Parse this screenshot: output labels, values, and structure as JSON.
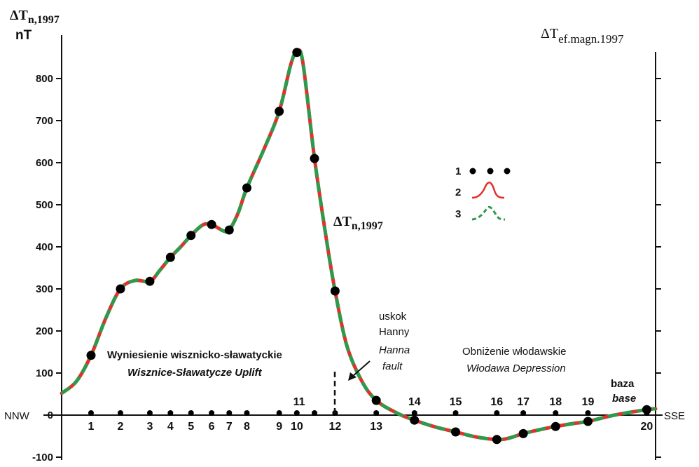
{
  "chart_data": {
    "type": "line",
    "left_axis_title_line1": "ΔT",
    "left_axis_title_sub": "n,1997",
    "left_axis_unit": "nT",
    "right_axis_title": "ΔT",
    "right_axis_title_sub": "ef.magn.1997",
    "curve_label": "ΔT",
    "curve_label_sub": "n,1997",
    "ylim": [
      -100,
      870
    ],
    "yticks": [
      -100,
      0,
      100,
      200,
      300,
      400,
      500,
      600,
      700,
      800
    ],
    "ytick_labels": [
      "-100",
      "0",
      "100",
      "200",
      "300",
      "400",
      "500",
      "600",
      "700",
      "800"
    ],
    "xlim": [
      0,
      20.2
    ],
    "left_end_label": "NNW",
    "right_end_label": "SSE",
    "stations": [
      {
        "label": "1",
        "x": 1,
        "y": 142
      },
      {
        "label": "2",
        "x": 2,
        "y": 300
      },
      {
        "label": "3",
        "x": 3,
        "y": 318
      },
      {
        "label": "4",
        "x": 3.7,
        "y": 375
      },
      {
        "label": "5",
        "x": 4.4,
        "y": 427
      },
      {
        "label": "6",
        "x": 5.1,
        "y": 453
      },
      {
        "label": "7",
        "x": 5.7,
        "y": 440
      },
      {
        "label": "8",
        "x": 6.3,
        "y": 540
      },
      {
        "label": "9",
        "x": 7.4,
        "y": 722
      },
      {
        "label": "10",
        "x": 8.0,
        "y": 862
      },
      {
        "label": "11",
        "x": 8.6,
        "y": 610
      },
      {
        "label": "12",
        "x": 9.3,
        "y": 295
      },
      {
        "label": "13",
        "x": 10.7,
        "y": 35
      },
      {
        "label": "14",
        "x": 12.0,
        "y": -12
      },
      {
        "label": "15",
        "x": 13.4,
        "y": -40
      },
      {
        "label": "16",
        "x": 14.8,
        "y": -58
      },
      {
        "label": "17",
        "x": 15.7,
        "y": -44
      },
      {
        "label": "18",
        "x": 16.8,
        "y": -27
      },
      {
        "label": "19",
        "x": 17.9,
        "y": -15
      },
      {
        "label": "20",
        "x": 19.9,
        "y": 13
      }
    ],
    "curve": [
      {
        "x": 0.0,
        "y": 52
      },
      {
        "x": 0.5,
        "y": 80
      },
      {
        "x": 1.0,
        "y": 142
      },
      {
        "x": 1.5,
        "y": 230
      },
      {
        "x": 2.0,
        "y": 300
      },
      {
        "x": 2.5,
        "y": 320
      },
      {
        "x": 3.0,
        "y": 318
      },
      {
        "x": 3.35,
        "y": 345
      },
      {
        "x": 3.7,
        "y": 375
      },
      {
        "x": 4.05,
        "y": 400
      },
      {
        "x": 4.4,
        "y": 427
      },
      {
        "x": 4.8,
        "y": 452
      },
      {
        "x": 5.1,
        "y": 453
      },
      {
        "x": 5.5,
        "y": 438
      },
      {
        "x": 5.7,
        "y": 440
      },
      {
        "x": 6.0,
        "y": 480
      },
      {
        "x": 6.3,
        "y": 540
      },
      {
        "x": 6.9,
        "y": 635
      },
      {
        "x": 7.4,
        "y": 722
      },
      {
        "x": 7.8,
        "y": 835
      },
      {
        "x": 8.0,
        "y": 862
      },
      {
        "x": 8.2,
        "y": 840
      },
      {
        "x": 8.6,
        "y": 610
      },
      {
        "x": 9.0,
        "y": 420
      },
      {
        "x": 9.3,
        "y": 295
      },
      {
        "x": 9.7,
        "y": 165
      },
      {
        "x": 10.2,
        "y": 82
      },
      {
        "x": 10.7,
        "y": 35
      },
      {
        "x": 11.4,
        "y": 5
      },
      {
        "x": 12.0,
        "y": -12
      },
      {
        "x": 12.7,
        "y": -28
      },
      {
        "x": 13.4,
        "y": -40
      },
      {
        "x": 14.1,
        "y": -52
      },
      {
        "x": 14.8,
        "y": -58
      },
      {
        "x": 15.2,
        "y": -55
      },
      {
        "x": 15.7,
        "y": -44
      },
      {
        "x": 16.3,
        "y": -34
      },
      {
        "x": 16.8,
        "y": -27
      },
      {
        "x": 17.4,
        "y": -20
      },
      {
        "x": 17.9,
        "y": -15
      },
      {
        "x": 18.8,
        "y": 0
      },
      {
        "x": 19.9,
        "y": 13
      },
      {
        "x": 20.2,
        "y": 15
      }
    ],
    "baseline_dots_x": [
      1,
      2,
      3,
      3.7,
      4.4,
      5.1,
      5.7,
      6.3,
      7.4,
      8.0,
      8.6,
      9.3,
      10.7,
      12.0,
      13.4,
      14.8,
      15.7,
      16.8,
      17.9,
      19.9
    ],
    "fault_x": 9.35,
    "colors": {
      "curve_red": "#e0322b",
      "curve_green": "#2e9a4e",
      "dot": "#000000"
    },
    "legend": [
      {
        "num": "1",
        "kind": "dots"
      },
      {
        "num": "2",
        "kind": "red-line"
      },
      {
        "num": "3",
        "kind": "green-dashed"
      }
    ],
    "annotations": {
      "uplift_pl": "Wyniesienie wisznicko-sławatyckie",
      "uplift_en": "Wisznice-Sławatycze Uplift",
      "fault_pl_1": "uskok",
      "fault_pl_2": "Hanny",
      "fault_en_1": "Hanna",
      "fault_en_2": "fault",
      "depression_pl": "Obniżenie włodawskie",
      "depression_en": "Włodawa Depression",
      "base_pl": "baza",
      "base_en": "base"
    }
  }
}
